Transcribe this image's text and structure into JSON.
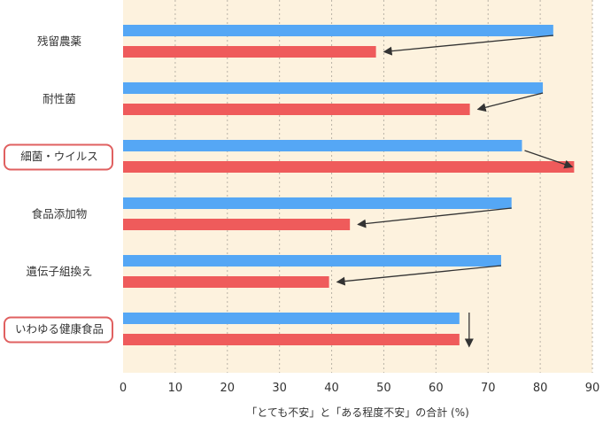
{
  "chart_data": {
    "type": "bar",
    "orientation": "horizontal",
    "categories": [
      "残留農薬",
      "耐性菌",
      "細菌・ウイルス",
      "食品添加物",
      "遺伝子組換え",
      "いわゆる健康食品"
    ],
    "highlighted_categories": [
      "細菌・ウイルス",
      "いわゆる健康食品"
    ],
    "series": [
      {
        "color": "#55a7f5",
        "values": [
          82.5,
          80.5,
          76.5,
          74.5,
          72.5,
          64.5
        ]
      },
      {
        "color": "#ef5b5b",
        "values": [
          48.5,
          66.5,
          86.5,
          43.5,
          39.5,
          64.5
        ]
      }
    ],
    "xlim": [
      0,
      90
    ],
    "x_ticks": [
      0,
      10,
      20,
      30,
      40,
      50,
      60,
      70,
      80,
      90
    ],
    "xlabel": "「とても不安」と「ある程度不安」の合計 (%)",
    "ylabel": "",
    "grid": "vertical dotted",
    "plot_background": "#fdf2de",
    "highlight_border_color": "#e06060",
    "annotations": "arrows from blue bar end to red bar end"
  }
}
